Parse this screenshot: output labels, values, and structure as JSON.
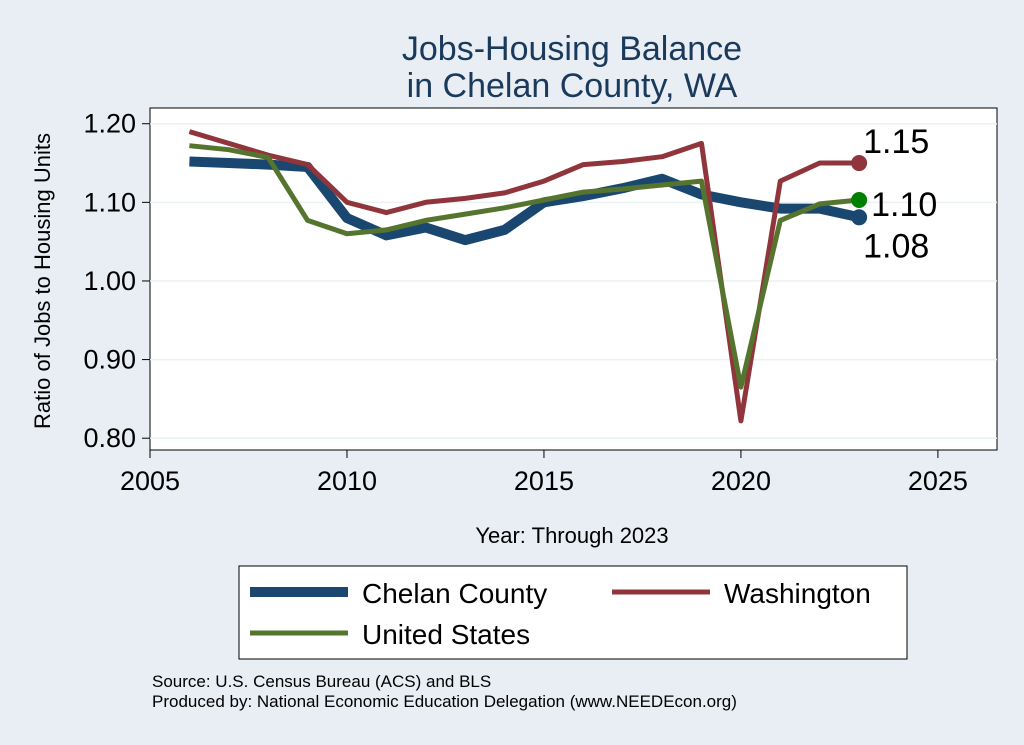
{
  "chart_data": {
    "type": "line",
    "title": [
      "Jobs-Housing Balance",
      "in Chelan County, WA"
    ],
    "xlabel": "Year: Through 2023",
    "ylabel": "Ratio of Jobs to Housing Units",
    "xlim": [
      2005,
      2026.5
    ],
    "ylim": [
      0.785,
      1.22
    ],
    "xticks": [
      2005,
      2010,
      2015,
      2020,
      2025
    ],
    "xtick_labels": [
      "2005",
      "2010",
      "2015",
      "2020",
      "2025"
    ],
    "yticks": [
      0.8,
      0.9,
      1.0,
      1.1,
      1.2
    ],
    "ytick_labels": [
      "0.80",
      "0.90",
      "1.00",
      "1.10",
      "1.20"
    ],
    "grid": true,
    "legend_position": "bottom",
    "x": [
      2006,
      2007,
      2008,
      2009,
      2010,
      2011,
      2012,
      2013,
      2014,
      2015,
      2016,
      2017,
      2018,
      2019,
      2020,
      2021,
      2022,
      2023
    ],
    "series": [
      {
        "name": "Chelan County",
        "color": "#1a476f",
        "values": [
          1.152,
          1.15,
          1.148,
          1.145,
          1.08,
          1.058,
          1.068,
          1.052,
          1.065,
          1.1,
          1.108,
          1.118,
          1.13,
          1.11,
          1.1,
          1.092,
          1.092,
          1.081
        ],
        "end_label": "1.08"
      },
      {
        "name": "Washington",
        "color": "#90353b",
        "values": [
          1.19,
          1.175,
          1.16,
          1.148,
          1.1,
          1.087,
          1.1,
          1.105,
          1.112,
          1.127,
          1.148,
          1.152,
          1.158,
          1.175,
          0.822,
          1.127,
          1.15,
          1.15
        ],
        "end_label": "1.15"
      },
      {
        "name": "United States",
        "color": "#55752f",
        "values": [
          1.172,
          1.167,
          1.157,
          1.077,
          1.06,
          1.065,
          1.077,
          1.085,
          1.093,
          1.103,
          1.113,
          1.117,
          1.122,
          1.127,
          0.865,
          1.077,
          1.098,
          1.103
        ],
        "end_label": "1.10",
        "end_marker_color": "#008000"
      }
    ],
    "notes": [
      "Source: U.S. Census Bureau (ACS) and BLS",
      "Produced by: National Economic Education Delegation (www.NEEDEcon.org)"
    ]
  }
}
